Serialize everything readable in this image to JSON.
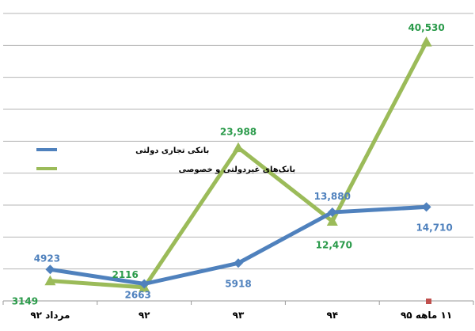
{
  "chart_data": {
    "type": "line",
    "categories": [
      "مرداد ۹۲",
      "۹۲",
      "۹۳",
      "۹۴",
      "۱۱ ماهه ۹۵"
    ],
    "series": [
      {
        "name": "بانکی تجاری دولتی",
        "color": "#4f81bd",
        "marker": "diamond",
        "values": [
          4923,
          2663,
          5918,
          13880,
          14710
        ],
        "labels": [
          "4923",
          "2663",
          "5918",
          "13,880",
          "14,710"
        ]
      },
      {
        "name": "بانک‌های غیردولتی و خصوصی",
        "color": "#9bbb59",
        "marker": "triangle",
        "values": [
          3149,
          2116,
          23988,
          12470,
          40530
        ],
        "labels": [
          "3149",
          "2116",
          "23,988",
          "12,470",
          "40,530"
        ]
      }
    ],
    "ylim": [
      0,
      45000
    ],
    "ygrid_step": 5000,
    "grid": true,
    "legend_position": "left"
  }
}
